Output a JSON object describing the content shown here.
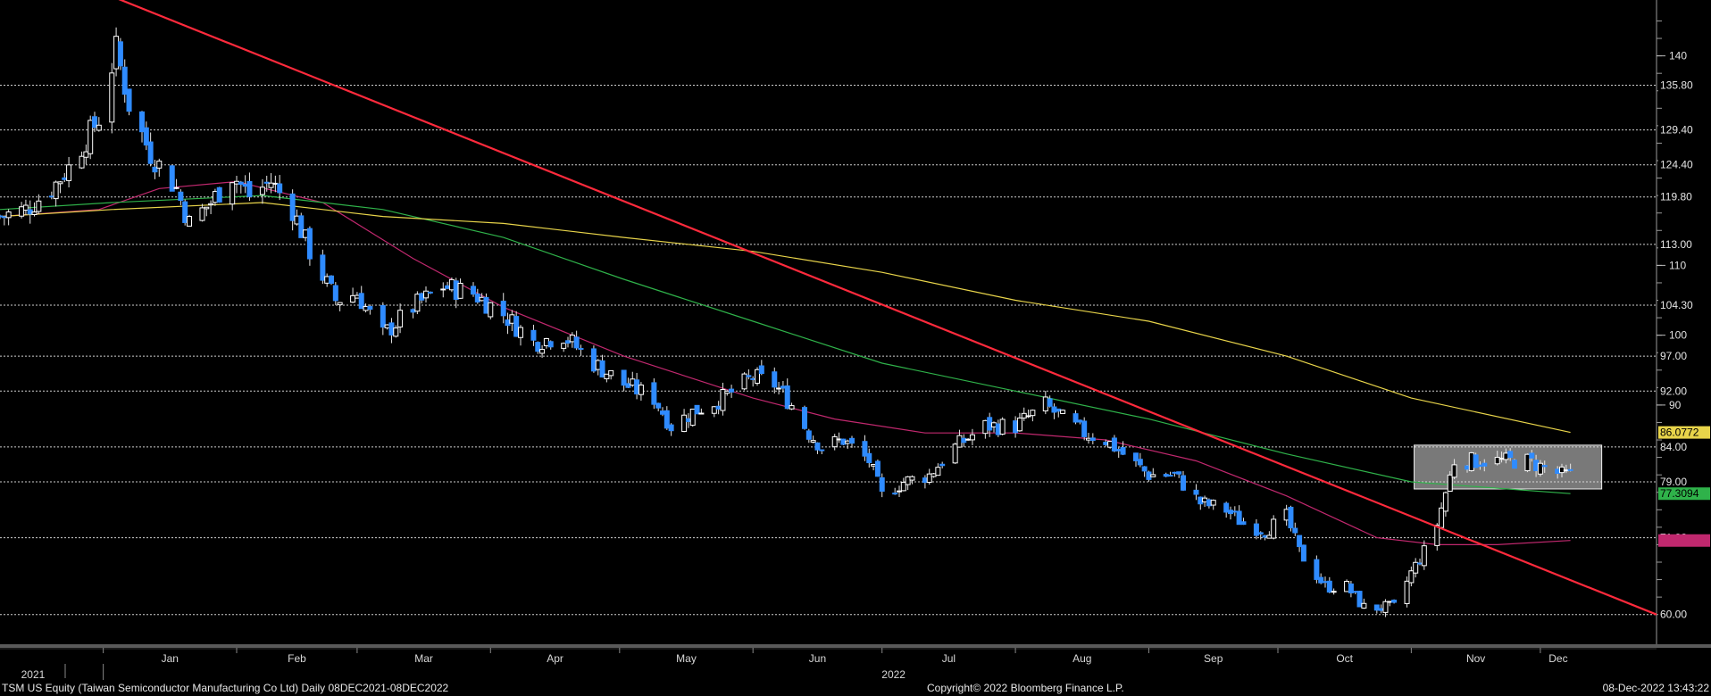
{
  "footer": {
    "left": "TSM US Equity (Taiwan Semiconductor Manufacturing Co Ltd)  Daily 08DEC2021-08DEC2022",
    "center": "Copyright© 2022 Bloomberg Finance L.P.",
    "right": "08-Dec-2022 13:43:22"
  },
  "chart_data": {
    "type": "candlestick",
    "ylim": [
      56,
      148
    ],
    "x_range": [
      "2021-12-08",
      "2022-12-28"
    ],
    "month_labels": [
      "Jan",
      "Feb",
      "Mar",
      "Apr",
      "May",
      "Jun",
      "Jul",
      "Aug",
      "Sep",
      "Oct",
      "Nov",
      "Dec"
    ],
    "year_labels": [
      "2021",
      "2022"
    ],
    "axis_ticks": [
      140,
      110,
      100,
      90
    ],
    "level_lines": [
      {
        "value": 135.8,
        "label": "135.80"
      },
      {
        "value": 129.4,
        "label": "129.40"
      },
      {
        "value": 124.4,
        "label": "124.40"
      },
      {
        "value": 119.8,
        "label": "119.80"
      },
      {
        "value": 113.0,
        "label": "113.00"
      },
      {
        "value": 104.3,
        "label": "104.30"
      },
      {
        "value": 97.0,
        "label": "97.00"
      },
      {
        "value": 92.0,
        "label": "92.00"
      },
      {
        "value": 84.0,
        "label": "84.00"
      },
      {
        "value": 79.0,
        "label": "79.00"
      },
      {
        "value": 71.0,
        "label": "71.00"
      },
      {
        "value": 60.0,
        "label": "60.00"
      }
    ],
    "last_value_tags": [
      {
        "value": 86.0772,
        "label": "86.0772",
        "color": "#e8d44a",
        "text_color": "#000000"
      },
      {
        "value": 77.3094,
        "label": "77.3094",
        "color": "#2fb24a",
        "text_color": "#000000"
      },
      {
        "value": 70.6,
        "label": "",
        "color": "#c0286e",
        "text_color": "#000000"
      }
    ],
    "price_path": [
      [
        "2021-12-08",
        117
      ],
      [
        "2021-12-14",
        118
      ],
      [
        "2021-12-20",
        121
      ],
      [
        "2021-12-24",
        124
      ],
      [
        "2021-12-28",
        128
      ],
      [
        "2021-12-31",
        131
      ],
      [
        "2022-01-04",
        141
      ],
      [
        "2022-01-07",
        133
      ],
      [
        "2022-01-12",
        126
      ],
      [
        "2022-01-18",
        121
      ],
      [
        "2022-01-21",
        116
      ],
      [
        "2022-01-26",
        119
      ],
      [
        "2022-01-31",
        123
      ],
      [
        "2022-02-04",
        120
      ],
      [
        "2022-02-09",
        122
      ],
      [
        "2022-02-14",
        118
      ],
      [
        "2022-02-18",
        112
      ],
      [
        "2022-02-24",
        105
      ],
      [
        "2022-03-01",
        106
      ],
      [
        "2022-03-07",
        100
      ],
      [
        "2022-03-14",
        104
      ],
      [
        "2022-03-21",
        107
      ],
      [
        "2022-03-28",
        106
      ],
      [
        "2022-04-04",
        103
      ],
      [
        "2022-04-11",
        99
      ],
      [
        "2022-04-18",
        100
      ],
      [
        "2022-04-25",
        96
      ],
      [
        "2022-05-02",
        93
      ],
      [
        "2022-05-09",
        91
      ],
      [
        "2022-05-13",
        87
      ],
      [
        "2022-05-18",
        89
      ],
      [
        "2022-05-25",
        91
      ],
      [
        "2022-06-01",
        94
      ],
      [
        "2022-06-06",
        93
      ],
      [
        "2022-06-10",
        90
      ],
      [
        "2022-06-14",
        86
      ],
      [
        "2022-06-17",
        84
      ],
      [
        "2022-06-22",
        85
      ],
      [
        "2022-06-28",
        82
      ],
      [
        "2022-07-01",
        77
      ],
      [
        "2022-07-06",
        79
      ],
      [
        "2022-07-12",
        80
      ],
      [
        "2022-07-18",
        84
      ],
      [
        "2022-07-25",
        87
      ],
      [
        "2022-08-01",
        87
      ],
      [
        "2022-08-08",
        90
      ],
      [
        "2022-08-12",
        88
      ],
      [
        "2022-08-17",
        86
      ],
      [
        "2022-08-22",
        85
      ],
      [
        "2022-08-26",
        83
      ],
      [
        "2022-09-01",
        80
      ],
      [
        "2022-09-07",
        80
      ],
      [
        "2022-09-13",
        76
      ],
      [
        "2022-09-19",
        75
      ],
      [
        "2022-09-23",
        73
      ],
      [
        "2022-09-28",
        72
      ],
      [
        "2022-10-03",
        74
      ],
      [
        "2022-10-06",
        69
      ],
      [
        "2022-10-12",
        64
      ],
      [
        "2022-10-17",
        64
      ],
      [
        "2022-10-21",
        61
      ],
      [
        "2022-10-25",
        61
      ],
      [
        "2022-10-28",
        61
      ],
      [
        "2022-11-01",
        66
      ],
      [
        "2022-11-04",
        69
      ],
      [
        "2022-11-07",
        73
      ],
      [
        "2022-11-11",
        82
      ],
      [
        "2022-11-16",
        82
      ],
      [
        "2022-11-21",
        82
      ],
      [
        "2022-11-28",
        82
      ],
      [
        "2022-12-02",
        81
      ],
      [
        "2022-12-06",
        80
      ],
      [
        "2022-12-08",
        80
      ]
    ],
    "moving_averages": [
      {
        "color": "#c0286e",
        "points": [
          [
            "2021-12-08",
            117
          ],
          [
            "2021-12-31",
            118
          ],
          [
            "2022-01-14",
            121
          ],
          [
            "2022-02-01",
            122
          ],
          [
            "2022-02-21",
            119
          ],
          [
            "2022-03-14",
            111
          ],
          [
            "2022-04-04",
            104
          ],
          [
            "2022-05-02",
            97
          ],
          [
            "2022-06-01",
            91
          ],
          [
            "2022-06-20",
            88
          ],
          [
            "2022-07-11",
            86
          ],
          [
            "2022-08-01",
            86
          ],
          [
            "2022-08-22",
            85
          ],
          [
            "2022-09-12",
            82
          ],
          [
            "2022-10-03",
            77
          ],
          [
            "2022-10-24",
            71
          ],
          [
            "2022-11-07",
            70
          ],
          [
            "2022-11-21",
            70
          ],
          [
            "2022-12-08",
            70.6
          ]
        ]
      },
      {
        "color": "#2fb24a",
        "points": [
          [
            "2021-12-08",
            118
          ],
          [
            "2022-01-03",
            119
          ],
          [
            "2022-02-07",
            120
          ],
          [
            "2022-03-07",
            118
          ],
          [
            "2022-04-04",
            114
          ],
          [
            "2022-05-02",
            108
          ],
          [
            "2022-06-01",
            102
          ],
          [
            "2022-07-01",
            96
          ],
          [
            "2022-08-01",
            92
          ],
          [
            "2022-09-01",
            88
          ],
          [
            "2022-10-03",
            83
          ],
          [
            "2022-11-01",
            79
          ],
          [
            "2022-12-08",
            77.3094
          ]
        ]
      },
      {
        "color": "#e8d44a",
        "points": [
          [
            "2021-12-08",
            117
          ],
          [
            "2022-01-03",
            118
          ],
          [
            "2022-02-07",
            119
          ],
          [
            "2022-03-07",
            117
          ],
          [
            "2022-04-04",
            116
          ],
          [
            "2022-05-02",
            114
          ],
          [
            "2022-06-01",
            112
          ],
          [
            "2022-07-01",
            109
          ],
          [
            "2022-08-01",
            105
          ],
          [
            "2022-09-01",
            102
          ],
          [
            "2022-10-03",
            97
          ],
          [
            "2022-11-01",
            91
          ],
          [
            "2022-12-08",
            86.0772
          ]
        ]
      }
    ],
    "trendline": {
      "color": "#ff2a3c",
      "from": [
        "2021-12-28",
        150
      ],
      "to": [
        "2022-12-28",
        60
      ]
    },
    "highlight_box": {
      "from": "2022-11-11",
      "to": "2022-12-08",
      "low": 79,
      "high": 84
    },
    "grid": {
      "horizontal_dotted": true
    }
  }
}
